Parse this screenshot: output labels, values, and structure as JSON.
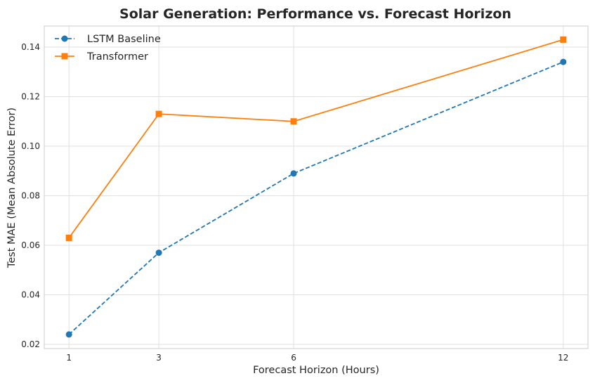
{
  "chart_data": {
    "type": "line",
    "title": "Solar Generation: Performance vs. Forecast Horizon",
    "xlabel": "Forecast Horizon (Hours)",
    "ylabel": "Test MAE (Mean Absolute Error)",
    "x": [
      1,
      3,
      6,
      12
    ],
    "xticks": [
      "1",
      "3",
      "6",
      "12"
    ],
    "xlim": [
      0.45,
      12.55
    ],
    "ylim": [
      0.0183,
      0.1485
    ],
    "yticks": [
      "0.02",
      "0.04",
      "0.06",
      "0.08",
      "0.10",
      "0.12",
      "0.14"
    ],
    "ytick_values": [
      0.02,
      0.04,
      0.06,
      0.08,
      0.1,
      0.12,
      0.14
    ],
    "grid": true,
    "legend_position": "top-left",
    "series": [
      {
        "name": "LSTM Baseline",
        "values": [
          0.024,
          0.057,
          0.089,
          0.134
        ],
        "color": "#1f77b4",
        "marker": "circle",
        "linestyle": "dashed"
      },
      {
        "name": "Transformer",
        "values": [
          0.063,
          0.113,
          0.11,
          0.143
        ],
        "color": "#ff7f0e",
        "marker": "square",
        "linestyle": "solid"
      }
    ]
  }
}
